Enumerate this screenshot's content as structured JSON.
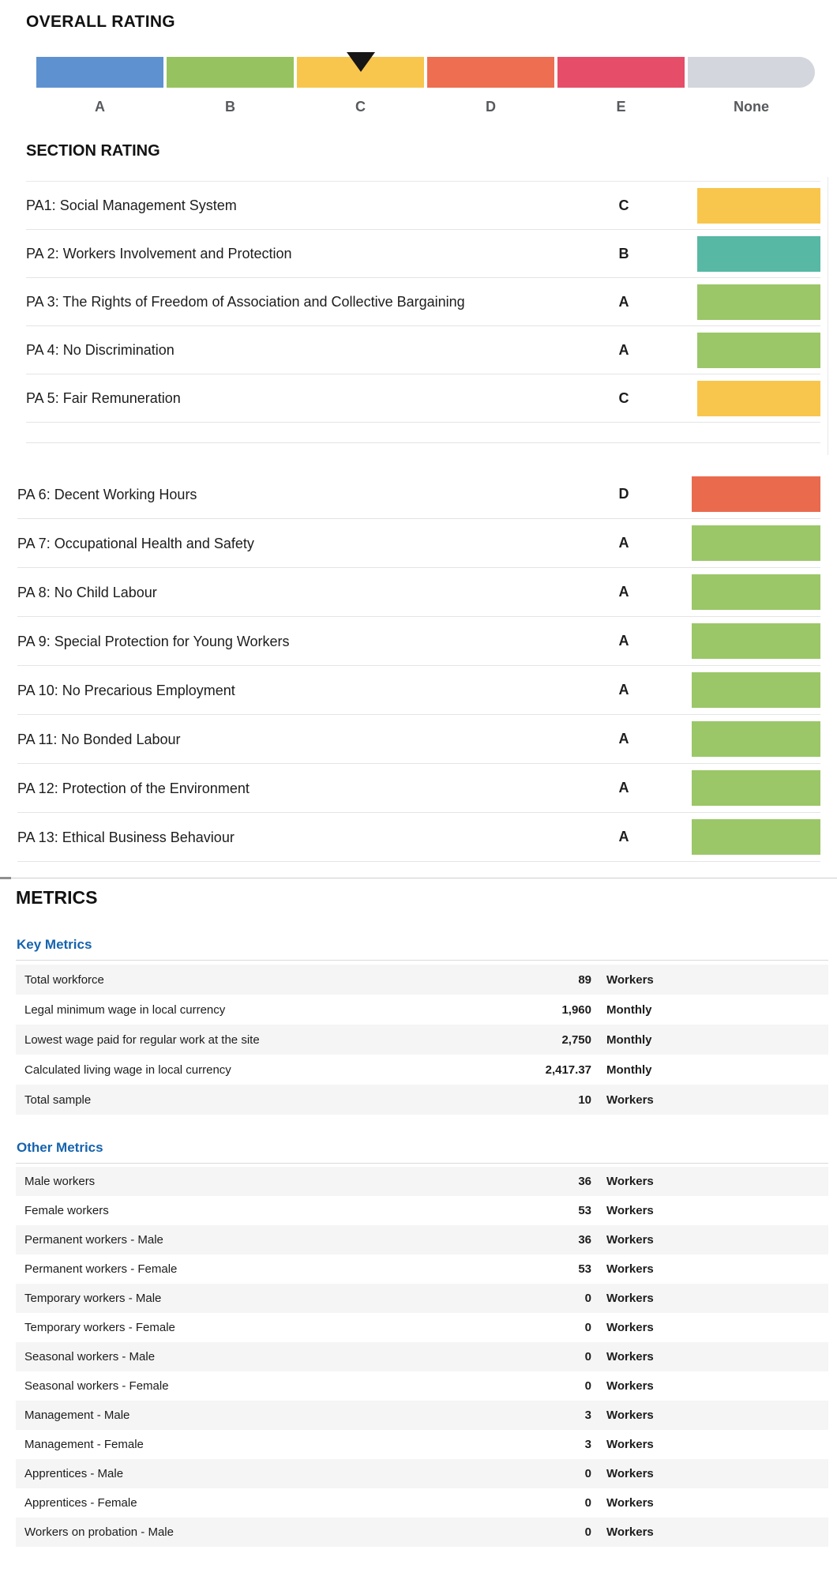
{
  "colors": {
    "grade_a_blue": "#5e91cf",
    "grade_b_green": "#96c25f",
    "grade_c_yellow": "#f8c64d",
    "grade_d_orange": "#ed6e50",
    "grade_e_red": "#e64d68",
    "grade_none_gray": "#d3d6dc",
    "section_b_teal": "#57b8a4",
    "section_a_green": "#9bc768",
    "metrics_heading_blue": "#1563ae"
  },
  "overall_rating": {
    "title": "OVERALL RATING",
    "selected": "C",
    "scale": [
      {
        "label": "A",
        "color": "#5e91cf"
      },
      {
        "label": "B",
        "color": "#96c25f"
      },
      {
        "label": "C",
        "color": "#f8c64d"
      },
      {
        "label": "D",
        "color": "#ed6e50"
      },
      {
        "label": "E",
        "color": "#e64d68"
      },
      {
        "label": "None",
        "color": "#d3d6dc"
      }
    ]
  },
  "section_rating": {
    "title": "SECTION RATING",
    "group1": [
      {
        "label": "PA1: Social Management System",
        "grade": "C",
        "color": "#f8c64d"
      },
      {
        "label": "PA 2: Workers Involvement and Protection",
        "grade": "B",
        "color": "#57b8a4"
      },
      {
        "label": "PA 3: The Rights of Freedom of Association and Collective Bargaining",
        "grade": "A",
        "color": "#9bc768"
      },
      {
        "label": "PA 4: No Discrimination",
        "grade": "A",
        "color": "#9bc768"
      },
      {
        "label": "PA 5: Fair Remuneration",
        "grade": "C",
        "color": "#f8c64d"
      }
    ],
    "group2": [
      {
        "label": "PA 6: Decent Working Hours",
        "grade": "D",
        "color": "#ea6a4e"
      },
      {
        "label": "PA 7: Occupational Health and Safety",
        "grade": "A",
        "color": "#9bc768"
      },
      {
        "label": "PA 8: No Child Labour",
        "grade": "A",
        "color": "#9bc768"
      },
      {
        "label": "PA 9: Special Protection for Young Workers",
        "grade": "A",
        "color": "#9bc768"
      },
      {
        "label": "PA 10: No Precarious Employment",
        "grade": "A",
        "color": "#9bc768"
      },
      {
        "label": "PA 11: No Bonded Labour",
        "grade": "A",
        "color": "#9bc768"
      },
      {
        "label": "PA 12: Protection of the Environment",
        "grade": "A",
        "color": "#9bc768"
      },
      {
        "label": "PA 13: Ethical Business Behaviour",
        "grade": "A",
        "color": "#9bc768"
      }
    ]
  },
  "metrics": {
    "title": "METRICS",
    "key_metrics": {
      "title": "Key Metrics",
      "rows": [
        {
          "label": "Total workforce",
          "value": "89",
          "unit": "Workers"
        },
        {
          "label": "Legal minimum wage in local currency",
          "value": "1,960",
          "unit": "Monthly"
        },
        {
          "label": "Lowest wage paid for regular work at the site",
          "value": "2,750",
          "unit": "Monthly"
        },
        {
          "label": "Calculated living wage in local currency",
          "value": "2,417.37",
          "unit": "Monthly"
        },
        {
          "label": "Total sample",
          "value": "10",
          "unit": "Workers"
        }
      ]
    },
    "other_metrics": {
      "title": "Other Metrics",
      "rows": [
        {
          "label": "Male workers",
          "value": "36",
          "unit": "Workers"
        },
        {
          "label": "Female workers",
          "value": "53",
          "unit": "Workers"
        },
        {
          "label": "Permanent workers - Male",
          "value": "36",
          "unit": "Workers"
        },
        {
          "label": "Permanent workers - Female",
          "value": "53",
          "unit": "Workers"
        },
        {
          "label": "Temporary workers - Male",
          "value": "0",
          "unit": "Workers"
        },
        {
          "label": "Temporary workers - Female",
          "value": "0",
          "unit": "Workers"
        },
        {
          "label": "Seasonal workers - Male",
          "value": "0",
          "unit": "Workers"
        },
        {
          "label": "Seasonal workers - Female",
          "value": "0",
          "unit": "Workers"
        },
        {
          "label": "Management - Male",
          "value": "3",
          "unit": "Workers"
        },
        {
          "label": "Management - Female",
          "value": "3",
          "unit": "Workers"
        },
        {
          "label": "Apprentices - Male",
          "value": "0",
          "unit": "Workers"
        },
        {
          "label": "Apprentices - Female",
          "value": "0",
          "unit": "Workers"
        },
        {
          "label": "Workers on probation - Male",
          "value": "0",
          "unit": "Workers"
        }
      ]
    }
  }
}
